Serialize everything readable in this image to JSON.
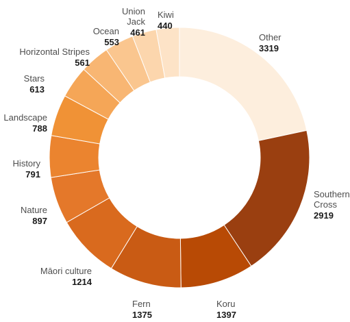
{
  "chart_data": {
    "type": "pie",
    "variant": "donut",
    "title": "",
    "slices": [
      {
        "label": "Other",
        "value": 3319,
        "color": "#fdeedd"
      },
      {
        "label": "Southern Cross",
        "value": 2919,
        "color": "#9a3f10"
      },
      {
        "label": "Koru",
        "value": 1397,
        "color": "#b84a05"
      },
      {
        "label": "Fern",
        "value": 1375,
        "color": "#c95b14"
      },
      {
        "label": "Māori culture",
        "value": 1214,
        "color": "#d96a1e"
      },
      {
        "label": "Nature",
        "value": 897,
        "color": "#e4782a"
      },
      {
        "label": "History",
        "value": 791,
        "color": "#eb842f"
      },
      {
        "label": "Landscape",
        "value": 788,
        "color": "#f09236"
      },
      {
        "label": "Stars",
        "value": 613,
        "color": "#f5a657"
      },
      {
        "label": "Horizontal Stripes",
        "value": 561,
        "color": "#f8b673"
      },
      {
        "label": "Ocean",
        "value": 553,
        "color": "#fac68f"
      },
      {
        "label": "Union Jack",
        "value": 461,
        "color": "#fcd6ad"
      },
      {
        "label": "Kiwi",
        "value": 440,
        "color": "#fde3c7"
      }
    ]
  }
}
